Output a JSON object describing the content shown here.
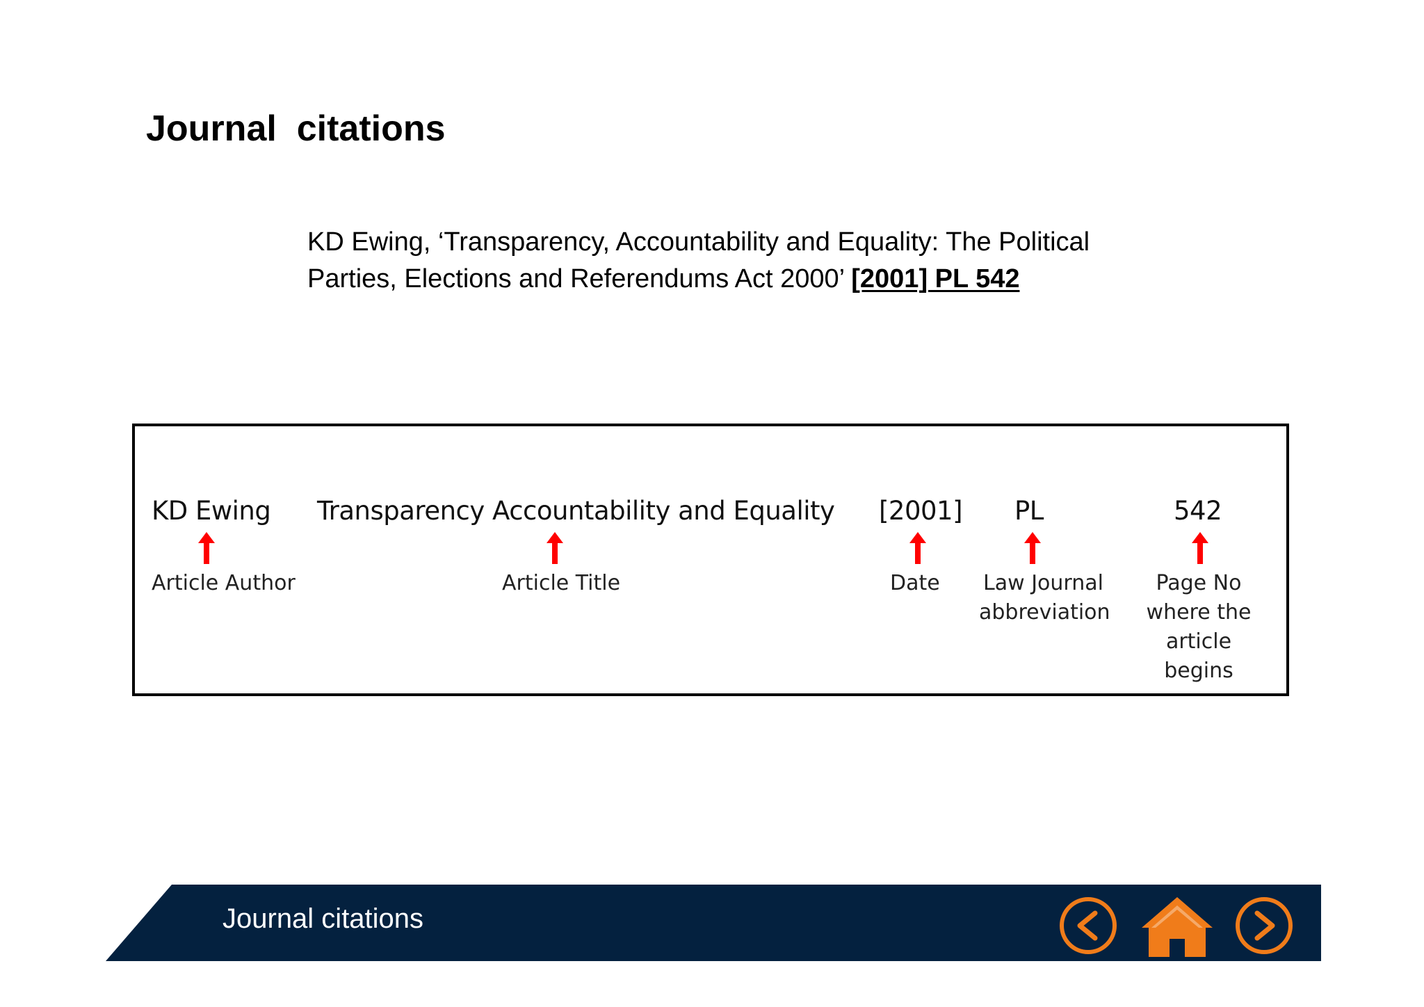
{
  "slide": {
    "title": "Journal  citations"
  },
  "citation": {
    "text_before_ref": "KD Ewing, ‘Transparency, Accountability and Equality: The Political Parties, Elections and Referendums Act 2000’ ",
    "reference": "[2001] PL 542"
  },
  "breakdown": {
    "parts": [
      {
        "value": "KD Ewing",
        "role": "Article Author"
      },
      {
        "value": "Transparency Accountability and Equality",
        "role": "Article Title"
      },
      {
        "value": "[2001]",
        "role": "Date"
      },
      {
        "value": "PL",
        "role": "Law Journal abbreviation"
      },
      {
        "value": "542",
        "role": "Page No where the article begins"
      }
    ],
    "arrow_color": "#ff0000"
  },
  "footer": {
    "title": "Journal citations",
    "background_color": "#04213f",
    "accent_color": "#f07c1a",
    "nav": {
      "previous_icon": "chevron-left-circle-icon",
      "home_icon": "home-icon",
      "next_icon": "chevron-right-circle-icon"
    }
  }
}
